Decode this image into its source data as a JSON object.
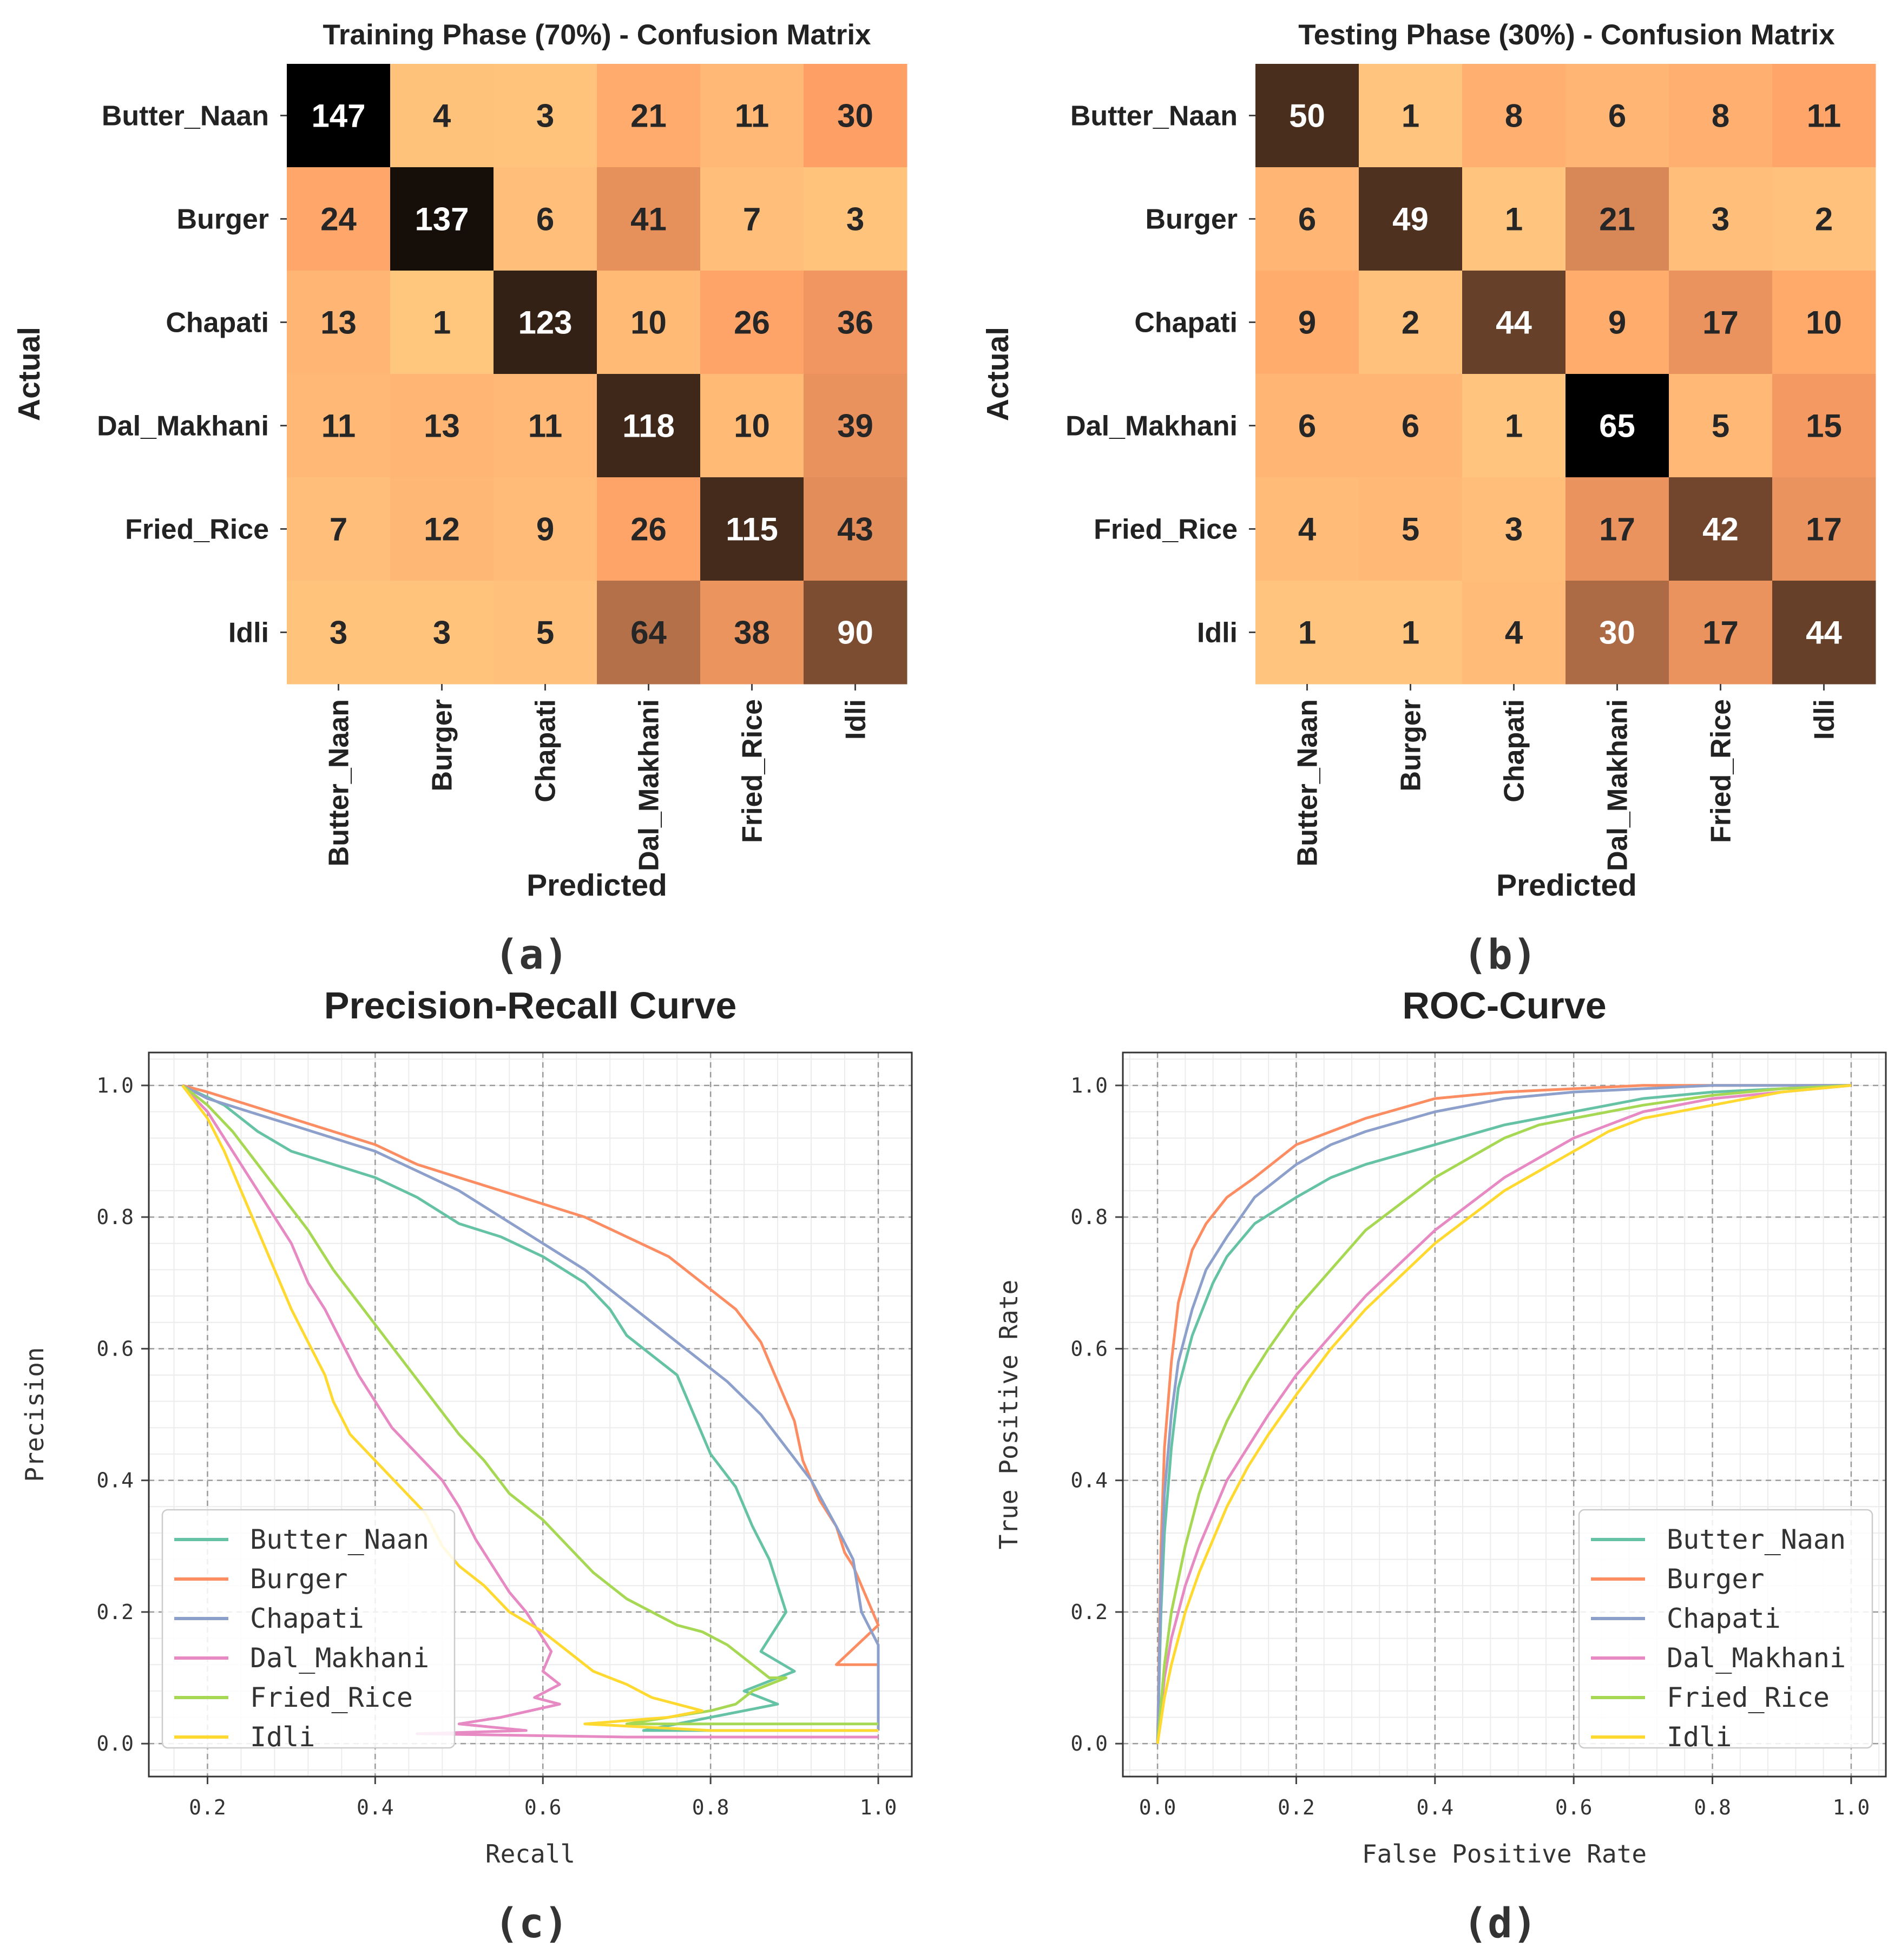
{
  "chart_data": [
    {
      "type": "heatmap",
      "panel_label": "(a)",
      "title": "Training Phase (70%) - Confusion Matrix",
      "xlabel": "Predicted",
      "ylabel": "Actual",
      "rows": [
        "Butter_Naan",
        "Burger",
        "Chapati",
        "Dal_Makhani",
        "Fried_Rice",
        "Idli"
      ],
      "cols": [
        "Butter_Naan",
        "Burger",
        "Chapati",
        "Dal_Makhani",
        "Fried_Rice",
        "Idli"
      ],
      "values": [
        [
          147,
          4,
          3,
          21,
          11,
          30
        ],
        [
          24,
          137,
          6,
          41,
          7,
          3
        ],
        [
          13,
          1,
          123,
          10,
          26,
          36
        ],
        [
          11,
          13,
          11,
          118,
          10,
          39
        ],
        [
          7,
          12,
          9,
          26,
          115,
          43
        ],
        [
          3,
          3,
          5,
          64,
          38,
          90
        ]
      ],
      "colormap": "copper_r"
    },
    {
      "type": "heatmap",
      "panel_label": "(b)",
      "title": "Testing Phase (30%) - Confusion Matrix",
      "xlabel": "Predicted",
      "ylabel": "Actual",
      "rows": [
        "Butter_Naan",
        "Burger",
        "Chapati",
        "Dal_Makhani",
        "Fried_Rice",
        "Idli"
      ],
      "cols": [
        "Butter_Naan",
        "Burger",
        "Chapati",
        "Dal_Makhani",
        "Fried_Rice",
        "Idli"
      ],
      "values": [
        [
          50,
          1,
          8,
          6,
          8,
          11
        ],
        [
          6,
          49,
          1,
          21,
          3,
          2
        ],
        [
          9,
          2,
          44,
          9,
          17,
          10
        ],
        [
          6,
          6,
          1,
          65,
          5,
          15
        ],
        [
          4,
          5,
          3,
          17,
          42,
          17
        ],
        [
          1,
          1,
          4,
          30,
          17,
          44
        ]
      ],
      "colormap": "copper_r"
    },
    {
      "type": "line",
      "panel_label": "(c)",
      "title": "Precision-Recall Curve",
      "xlabel": "Recall",
      "ylabel": "Precision",
      "xlim": [
        0.13,
        1.04
      ],
      "ylim": [
        -0.05,
        1.05
      ],
      "xticks": [
        "0.2",
        "0.4",
        "0.6",
        "0.8",
        "1.0"
      ],
      "yticks": [
        "0.0",
        "0.2",
        "0.4",
        "0.6",
        "0.8",
        "1.0"
      ],
      "grid": true,
      "legend": "lower-left",
      "series": [
        {
          "name": "Butter_Naan",
          "color": "#66c2a5",
          "x": [
            0.17,
            0.22,
            0.26,
            0.3,
            0.35,
            0.4,
            0.45,
            0.5,
            0.55,
            0.6,
            0.65,
            0.68,
            0.7,
            0.73,
            0.76,
            0.78,
            0.8,
            0.83,
            0.85,
            0.87,
            0.88,
            0.89,
            0.86,
            0.9,
            0.84,
            0.88,
            0.8,
            0.72,
            0.84,
            0.98,
            1.0
          ],
          "y": [
            1.0,
            0.97,
            0.93,
            0.9,
            0.88,
            0.86,
            0.83,
            0.79,
            0.77,
            0.74,
            0.7,
            0.66,
            0.62,
            0.59,
            0.56,
            0.5,
            0.44,
            0.39,
            0.33,
            0.28,
            0.24,
            0.2,
            0.14,
            0.11,
            0.08,
            0.06,
            0.04,
            0.02,
            0.02,
            0.02,
            0.02
          ]
        },
        {
          "name": "Burger",
          "color": "#fc8d62",
          "x": [
            0.17,
            0.2,
            0.25,
            0.3,
            0.35,
            0.4,
            0.45,
            0.5,
            0.55,
            0.6,
            0.65,
            0.7,
            0.75,
            0.79,
            0.83,
            0.86,
            0.88,
            0.9,
            0.91,
            0.93,
            0.95,
            0.96,
            0.97,
            0.98,
            0.99,
            1.0,
            0.95,
            1.0,
            1.0
          ],
          "y": [
            1.0,
            0.99,
            0.97,
            0.95,
            0.93,
            0.91,
            0.88,
            0.86,
            0.84,
            0.82,
            0.8,
            0.77,
            0.74,
            0.7,
            0.66,
            0.61,
            0.55,
            0.49,
            0.43,
            0.37,
            0.33,
            0.29,
            0.27,
            0.24,
            0.21,
            0.18,
            0.12,
            0.12,
            0.02
          ]
        },
        {
          "name": "Chapati",
          "color": "#8da0cb",
          "x": [
            0.17,
            0.2,
            0.25,
            0.3,
            0.35,
            0.4,
            0.45,
            0.5,
            0.55,
            0.6,
            0.65,
            0.7,
            0.74,
            0.78,
            0.82,
            0.86,
            0.89,
            0.92,
            0.95,
            0.97,
            0.98,
            1.0,
            1.0
          ],
          "y": [
            1.0,
            0.98,
            0.96,
            0.94,
            0.92,
            0.9,
            0.87,
            0.84,
            0.8,
            0.76,
            0.72,
            0.67,
            0.63,
            0.59,
            0.55,
            0.5,
            0.45,
            0.4,
            0.33,
            0.28,
            0.2,
            0.15,
            0.02
          ]
        },
        {
          "name": "Dal_Makhani",
          "color": "#e78ac3",
          "x": [
            0.17,
            0.2,
            0.23,
            0.26,
            0.28,
            0.3,
            0.32,
            0.34,
            0.36,
            0.38,
            0.4,
            0.42,
            0.45,
            0.48,
            0.5,
            0.52,
            0.54,
            0.56,
            0.58,
            0.59,
            0.6,
            0.61,
            0.6,
            0.62,
            0.59,
            0.62,
            0.55,
            0.5,
            0.58,
            0.45,
            0.7,
            0.85,
            1.0
          ],
          "y": [
            1.0,
            0.96,
            0.9,
            0.84,
            0.8,
            0.76,
            0.7,
            0.66,
            0.61,
            0.56,
            0.52,
            0.48,
            0.44,
            0.4,
            0.36,
            0.31,
            0.27,
            0.23,
            0.2,
            0.18,
            0.16,
            0.14,
            0.11,
            0.09,
            0.07,
            0.06,
            0.04,
            0.03,
            0.02,
            0.015,
            0.01,
            0.01,
            0.01
          ]
        },
        {
          "name": "Fried_Rice",
          "color": "#a6d854",
          "x": [
            0.17,
            0.2,
            0.23,
            0.26,
            0.29,
            0.32,
            0.35,
            0.38,
            0.41,
            0.44,
            0.47,
            0.5,
            0.53,
            0.56,
            0.6,
            0.63,
            0.66,
            0.7,
            0.73,
            0.76,
            0.79,
            0.82,
            0.85,
            0.87,
            0.89,
            0.85,
            0.83,
            0.8,
            0.75,
            0.7,
            0.85,
            1.0
          ],
          "y": [
            1.0,
            0.97,
            0.93,
            0.88,
            0.83,
            0.78,
            0.72,
            0.67,
            0.62,
            0.57,
            0.52,
            0.47,
            0.43,
            0.38,
            0.34,
            0.3,
            0.26,
            0.22,
            0.2,
            0.18,
            0.17,
            0.15,
            0.12,
            0.1,
            0.1,
            0.08,
            0.06,
            0.05,
            0.04,
            0.03,
            0.03,
            0.03
          ]
        },
        {
          "name": "Idli",
          "color": "#ffd92f",
          "x": [
            0.17,
            0.2,
            0.22,
            0.24,
            0.26,
            0.28,
            0.3,
            0.32,
            0.34,
            0.35,
            0.37,
            0.4,
            0.43,
            0.46,
            0.48,
            0.5,
            0.53,
            0.56,
            0.6,
            0.63,
            0.66,
            0.7,
            0.73,
            0.76,
            0.79,
            0.75,
            0.65,
            0.8,
            1.0
          ],
          "y": [
            1.0,
            0.95,
            0.9,
            0.84,
            0.78,
            0.72,
            0.66,
            0.61,
            0.56,
            0.52,
            0.47,
            0.43,
            0.39,
            0.35,
            0.3,
            0.27,
            0.24,
            0.2,
            0.17,
            0.14,
            0.11,
            0.09,
            0.07,
            0.06,
            0.05,
            0.04,
            0.03,
            0.02,
            0.02
          ]
        }
      ]
    },
    {
      "type": "line",
      "panel_label": "(d)",
      "title": "ROC-Curve",
      "xlabel": "False Positive Rate",
      "ylabel": "True Positive Rate",
      "xlim": [
        -0.05,
        1.05
      ],
      "ylim": [
        -0.05,
        1.05
      ],
      "xticks": [
        "0.0",
        "0.2",
        "0.4",
        "0.6",
        "0.8",
        "1.0"
      ],
      "yticks": [
        "0.0",
        "0.2",
        "0.4",
        "0.6",
        "0.8",
        "1.0"
      ],
      "grid": true,
      "legend": "lower-right",
      "series": [
        {
          "name": "Butter_Naan",
          "color": "#66c2a5",
          "x": [
            0.0,
            0.005,
            0.01,
            0.02,
            0.03,
            0.05,
            0.08,
            0.1,
            0.14,
            0.2,
            0.25,
            0.3,
            0.4,
            0.5,
            0.6,
            0.7,
            0.8,
            0.9,
            1.0
          ],
          "y": [
            0.0,
            0.2,
            0.32,
            0.45,
            0.54,
            0.62,
            0.7,
            0.74,
            0.79,
            0.83,
            0.86,
            0.88,
            0.91,
            0.94,
            0.96,
            0.98,
            0.99,
            0.995,
            1.0
          ]
        },
        {
          "name": "Burger",
          "color": "#fc8d62",
          "x": [
            0.0,
            0.005,
            0.01,
            0.02,
            0.03,
            0.05,
            0.07,
            0.1,
            0.14,
            0.2,
            0.25,
            0.3,
            0.4,
            0.5,
            0.6,
            0.7,
            1.0
          ],
          "y": [
            0.0,
            0.3,
            0.45,
            0.58,
            0.67,
            0.75,
            0.79,
            0.83,
            0.86,
            0.91,
            0.93,
            0.95,
            0.98,
            0.99,
            0.995,
            1.0,
            1.0
          ]
        },
        {
          "name": "Chapati",
          "color": "#8da0cb",
          "x": [
            0.0,
            0.005,
            0.01,
            0.02,
            0.03,
            0.05,
            0.07,
            0.1,
            0.14,
            0.2,
            0.25,
            0.3,
            0.4,
            0.5,
            0.6,
            0.7,
            0.8,
            1.0
          ],
          "y": [
            0.0,
            0.25,
            0.38,
            0.5,
            0.58,
            0.66,
            0.72,
            0.77,
            0.83,
            0.88,
            0.91,
            0.93,
            0.96,
            0.98,
            0.99,
            0.995,
            1.0,
            1.0
          ]
        },
        {
          "name": "Dal_Makhani",
          "color": "#e78ac3",
          "x": [
            0.0,
            0.01,
            0.02,
            0.04,
            0.06,
            0.08,
            0.1,
            0.13,
            0.16,
            0.2,
            0.25,
            0.3,
            0.35,
            0.4,
            0.45,
            0.5,
            0.55,
            0.6,
            0.65,
            0.7,
            0.8,
            0.9,
            1.0
          ],
          "y": [
            0.0,
            0.1,
            0.16,
            0.24,
            0.3,
            0.35,
            0.4,
            0.45,
            0.5,
            0.56,
            0.62,
            0.68,
            0.73,
            0.78,
            0.82,
            0.86,
            0.89,
            0.92,
            0.94,
            0.96,
            0.98,
            0.99,
            1.0
          ]
        },
        {
          "name": "Fried_Rice",
          "color": "#a6d854",
          "x": [
            0.0,
            0.01,
            0.02,
            0.04,
            0.06,
            0.08,
            0.1,
            0.13,
            0.16,
            0.2,
            0.25,
            0.3,
            0.35,
            0.4,
            0.45,
            0.5,
            0.55,
            0.6,
            0.7,
            0.8,
            0.9,
            1.0
          ],
          "y": [
            0.0,
            0.12,
            0.2,
            0.3,
            0.38,
            0.44,
            0.49,
            0.55,
            0.6,
            0.66,
            0.72,
            0.78,
            0.82,
            0.86,
            0.89,
            0.92,
            0.94,
            0.95,
            0.97,
            0.985,
            0.995,
            1.0
          ]
        },
        {
          "name": "Idli",
          "color": "#ffd92f",
          "x": [
            0.0,
            0.01,
            0.02,
            0.04,
            0.06,
            0.08,
            0.1,
            0.13,
            0.16,
            0.2,
            0.25,
            0.3,
            0.35,
            0.4,
            0.45,
            0.5,
            0.55,
            0.6,
            0.65,
            0.7,
            0.8,
            0.9,
            1.0
          ],
          "y": [
            0.0,
            0.07,
            0.12,
            0.2,
            0.26,
            0.31,
            0.36,
            0.42,
            0.47,
            0.53,
            0.6,
            0.66,
            0.71,
            0.76,
            0.8,
            0.84,
            0.87,
            0.9,
            0.93,
            0.95,
            0.97,
            0.99,
            1.0
          ]
        }
      ]
    }
  ]
}
